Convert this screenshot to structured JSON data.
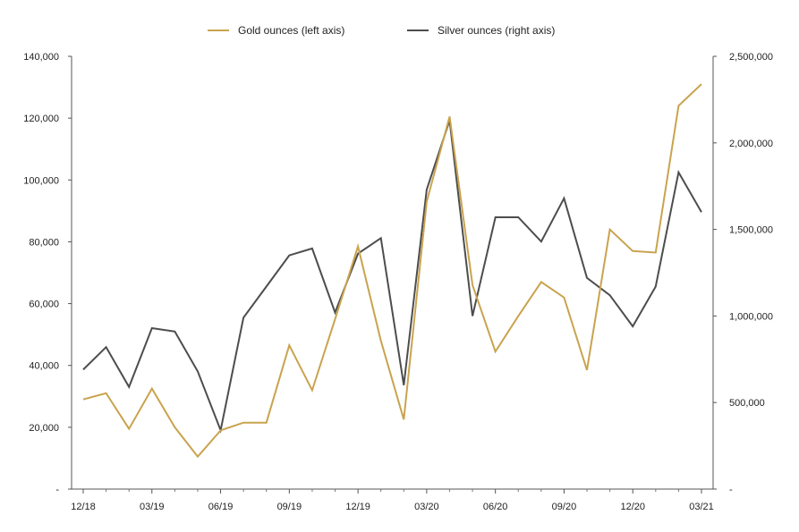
{
  "chart_data": {
    "type": "line",
    "title": "",
    "x": [
      "12/18",
      "01/19",
      "02/19",
      "03/19",
      "04/19",
      "05/19",
      "06/19",
      "07/19",
      "08/19",
      "09/19",
      "10/19",
      "11/19",
      "12/19",
      "01/20",
      "02/20",
      "03/20",
      "04/20",
      "05/20",
      "06/20",
      "07/20",
      "08/20",
      "09/20",
      "10/20",
      "11/20",
      "12/20",
      "01/21",
      "02/21",
      "03/21"
    ],
    "x_tick_labels": [
      "12/18",
      "03/19",
      "06/19",
      "09/19",
      "12/19",
      "03/20",
      "06/20",
      "09/20",
      "12/20",
      "03/21"
    ],
    "series": [
      {
        "name": "Gold ounces (left axis)",
        "axis": "left",
        "color": "#c9a34e",
        "values": [
          29000,
          31000,
          19500,
          32500,
          20000,
          10500,
          19000,
          21500,
          21500,
          46500,
          32000,
          55000,
          78500,
          48000,
          22500,
          93000,
          120500,
          66000,
          44500,
          56000,
          67000,
          62000,
          38500,
          84000,
          77000,
          76500,
          124000,
          131000
        ]
      },
      {
        "name": "Silver ounces (right axis)",
        "axis": "right",
        "color": "#4d4d4f",
        "values": [
          690000,
          820000,
          590000,
          930000,
          910000,
          680000,
          340000,
          990000,
          1170000,
          1350000,
          1390000,
          1020000,
          1360000,
          1450000,
          600000,
          1730000,
          2130000,
          1000000,
          1570000,
          1570000,
          1430000,
          1680000,
          1220000,
          1120000,
          940000,
          1170000,
          1830000,
          1600000
        ]
      }
    ],
    "left_axis": {
      "ylim": [
        0,
        140000
      ],
      "ticks": [
        0,
        20000,
        40000,
        60000,
        80000,
        100000,
        120000,
        140000
      ],
      "tick_labels": [
        "-",
        "20,000",
        "40,000",
        "60,000",
        "80,000",
        "100,000",
        "120,000",
        "140,000"
      ]
    },
    "right_axis": {
      "ylim": [
        0,
        2500000
      ],
      "ticks": [
        0,
        500000,
        1000000,
        1500000,
        2000000,
        2500000
      ],
      "tick_labels": [
        "-",
        "500,000",
        "1,000,000",
        "1,500,000",
        "2,000,000",
        "2,500,000"
      ]
    },
    "legend": {
      "position": "top-center",
      "items": [
        "Gold ounces (left axis)",
        "Silver ounces (right axis)"
      ]
    },
    "grid": false
  }
}
